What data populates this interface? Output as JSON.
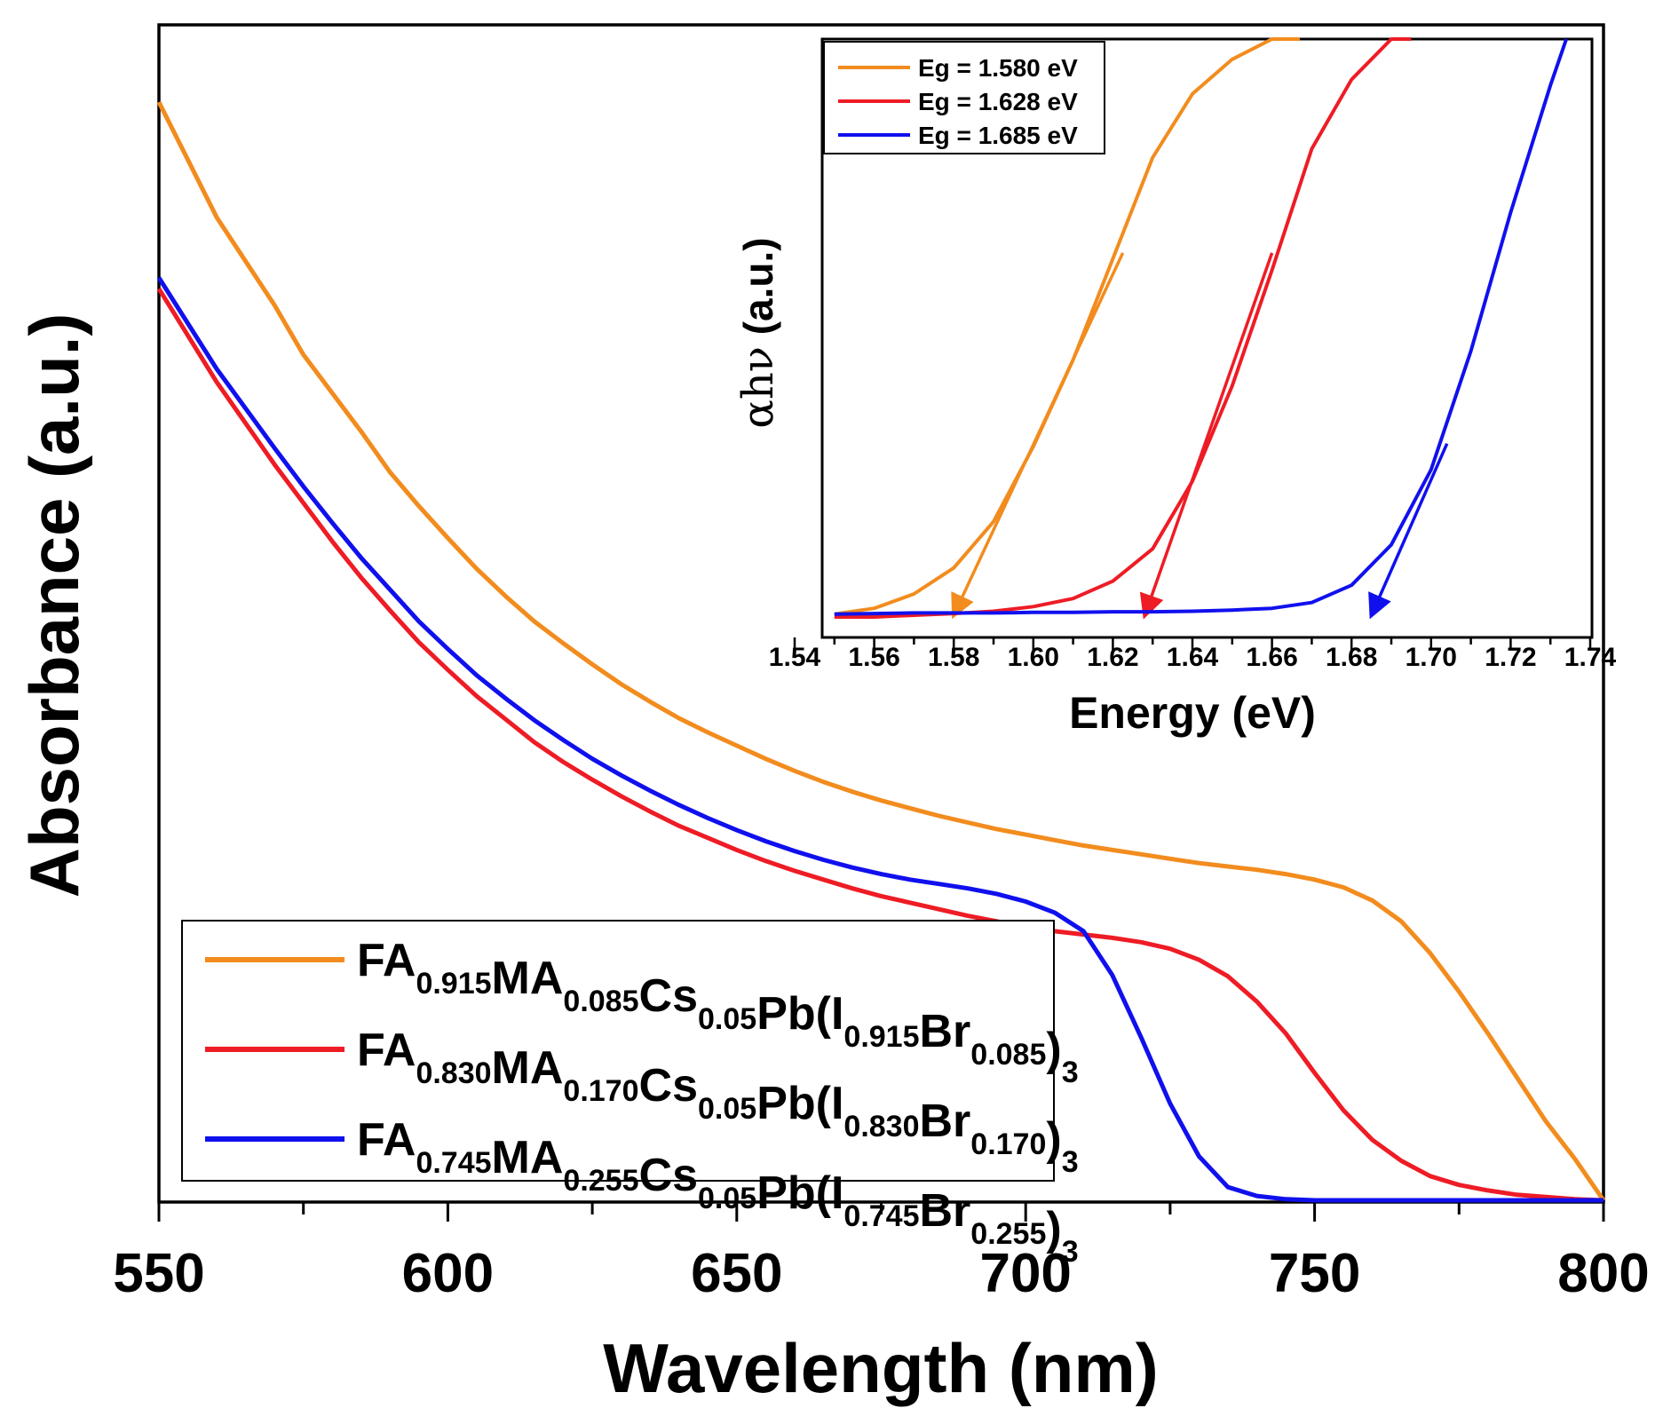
{
  "colors": {
    "orange": "#F28C1E",
    "red": "#EE1C25",
    "blue": "#1010EE",
    "axis": "#000000"
  },
  "chart_data": [
    {
      "type": "line",
      "title": "",
      "xlabel": "Wavelength (nm)",
      "ylabel": "Absorbance (a.u.)",
      "xlim": [
        550,
        800
      ],
      "ylim": [
        0,
        1.0
      ],
      "x_ticks": [
        "550",
        "600",
        "650",
        "700",
        "750",
        "800"
      ],
      "legend_position": "bottom-left",
      "series": [
        {
          "name": "FA0.915MA0.085Cs0.05Pb(I0.915Br0.085)3",
          "color": "#F28C1E",
          "legend_parts": [
            [
              "FA",
              "0.915"
            ],
            [
              "MA",
              "0.085"
            ],
            [
              "Cs",
              "0.05"
            ],
            [
              "Pb(I",
              "0.915"
            ],
            [
              "Br",
              "0.085"
            ],
            [
              ")",
              "3"
            ]
          ],
          "x": [
            550,
            560,
            570,
            575,
            580,
            585,
            590,
            595,
            600,
            605,
            610,
            615,
            620,
            625,
            630,
            635,
            640,
            645,
            650,
            655,
            660,
            665,
            670,
            675,
            680,
            685,
            690,
            695,
            700,
            705,
            710,
            715,
            720,
            725,
            730,
            735,
            740,
            745,
            750,
            755,
            760,
            765,
            770,
            775,
            780,
            785,
            790,
            795,
            800
          ],
          "y": [
            1.0,
            0.895,
            0.815,
            0.77,
            0.735,
            0.7,
            0.663,
            0.632,
            0.603,
            0.575,
            0.55,
            0.527,
            0.507,
            0.488,
            0.47,
            0.454,
            0.439,
            0.426,
            0.414,
            0.402,
            0.391,
            0.381,
            0.372,
            0.364,
            0.357,
            0.35,
            0.344,
            0.338,
            0.333,
            0.328,
            0.323,
            0.319,
            0.315,
            0.311,
            0.307,
            0.304,
            0.301,
            0.297,
            0.292,
            0.285,
            0.273,
            0.254,
            0.225,
            0.19,
            0.152,
            0.112,
            0.072,
            0.038,
            0.0
          ]
        },
        {
          "name": "FA0.830MA0.170Cs0.05Pb(I0.830Br0.170)3",
          "color": "#EE1C25",
          "legend_parts": [
            [
              "FA",
              "0.830"
            ],
            [
              "MA",
              "0.170"
            ],
            [
              "Cs",
              "0.05"
            ],
            [
              "Pb(I",
              "0.830"
            ],
            [
              "Br",
              "0.170"
            ],
            [
              ")",
              "3"
            ]
          ],
          "x": [
            550,
            560,
            570,
            575,
            580,
            585,
            590,
            595,
            600,
            605,
            610,
            615,
            620,
            625,
            630,
            635,
            640,
            645,
            650,
            655,
            660,
            665,
            670,
            675,
            680,
            685,
            690,
            695,
            700,
            705,
            710,
            715,
            720,
            725,
            730,
            735,
            740,
            745,
            750,
            755,
            760,
            765,
            770,
            775,
            780,
            785,
            790,
            795,
            800
          ],
          "y": [
            0.83,
            0.745,
            0.67,
            0.635,
            0.6,
            0.567,
            0.537,
            0.508,
            0.483,
            0.459,
            0.438,
            0.417,
            0.399,
            0.383,
            0.368,
            0.354,
            0.341,
            0.33,
            0.319,
            0.309,
            0.3,
            0.292,
            0.284,
            0.277,
            0.271,
            0.265,
            0.259,
            0.254,
            0.249,
            0.245,
            0.242,
            0.239,
            0.235,
            0.229,
            0.219,
            0.204,
            0.181,
            0.152,
            0.116,
            0.082,
            0.055,
            0.036,
            0.022,
            0.014,
            0.009,
            0.005,
            0.003,
            0.001,
            0.0
          ]
        },
        {
          "name": "FA0.745MA0.255Cs0.05Pb(I0.745Br0.255)3",
          "color": "#1010EE",
          "legend_parts": [
            [
              "FA",
              "0.745"
            ],
            [
              "MA",
              "0.255"
            ],
            [
              "Cs",
              "0.05"
            ],
            [
              "Pb(I",
              "0.745"
            ],
            [
              "Br",
              "0.255"
            ],
            [
              ")",
              "3"
            ]
          ],
          "x": [
            550,
            560,
            570,
            575,
            580,
            585,
            590,
            595,
            600,
            605,
            610,
            615,
            620,
            625,
            630,
            635,
            640,
            645,
            650,
            655,
            660,
            665,
            670,
            675,
            680,
            685,
            690,
            695,
            700,
            705,
            710,
            715,
            720,
            725,
            730,
            735,
            740,
            745,
            750,
            755,
            760,
            765,
            770,
            775,
            780,
            785,
            790,
            795,
            800
          ],
          "y": [
            0.84,
            0.757,
            0.685,
            0.65,
            0.617,
            0.585,
            0.556,
            0.527,
            0.502,
            0.478,
            0.457,
            0.437,
            0.419,
            0.402,
            0.387,
            0.373,
            0.36,
            0.348,
            0.337,
            0.327,
            0.318,
            0.31,
            0.303,
            0.297,
            0.292,
            0.288,
            0.284,
            0.279,
            0.272,
            0.262,
            0.245,
            0.205,
            0.148,
            0.088,
            0.04,
            0.012,
            0.004,
            0.001,
            0.0,
            0.0,
            0.0,
            0.0,
            0.0,
            0.0,
            0.0,
            0.0,
            0.0,
            0.0,
            0.0
          ]
        }
      ]
    },
    {
      "type": "line",
      "title": "",
      "xlabel": "Energy (eV)",
      "ylabel_symbol": "αhν",
      "ylabel_unit": " (a.u.)",
      "xlim": [
        1.54,
        1.74
      ],
      "ylim": [
        0,
        1.0
      ],
      "x_ticks": [
        "1.54",
        "1.56",
        "1.58",
        "1.60",
        "1.62",
        "1.64",
        "1.66",
        "1.68",
        "1.70",
        "1.72",
        "1.74"
      ],
      "legend_position": "top-left",
      "series": [
        {
          "name": "Eg = 1.580 eV",
          "color": "#F28C1E",
          "x": [
            1.55,
            1.56,
            1.57,
            1.58,
            1.59,
            1.6,
            1.61,
            1.62,
            1.63,
            1.64,
            1.65,
            1.66,
            1.667
          ],
          "y": [
            0.005,
            0.015,
            0.04,
            0.085,
            0.165,
            0.295,
            0.445,
            0.62,
            0.795,
            0.905,
            0.965,
            1.0,
            1.01
          ],
          "fit": {
            "x": [
              1.5802,
              1.6225
            ],
            "y": [
              0.0,
              0.63
            ]
          },
          "eg": 1.58
        },
        {
          "name": "Eg = 1.628 eV",
          "color": "#EE1C25",
          "x": [
            1.55,
            1.56,
            1.57,
            1.58,
            1.59,
            1.6,
            1.61,
            1.62,
            1.63,
            1.64,
            1.65,
            1.66,
            1.67,
            1.68,
            1.69,
            1.695
          ],
          "y": [
            0.0,
            0.0,
            0.003,
            0.006,
            0.01,
            0.018,
            0.032,
            0.062,
            0.118,
            0.235,
            0.4,
            0.6,
            0.81,
            0.93,
            1.0,
            1.01
          ],
          "fit": {
            "x": [
              1.6282,
              1.66
            ],
            "y": [
              0.0,
              0.63
            ]
          },
          "eg": 1.628
        },
        {
          "name": "Eg = 1.685 eV",
          "color": "#1010EE",
          "x": [
            1.55,
            1.56,
            1.57,
            1.58,
            1.59,
            1.6,
            1.61,
            1.62,
            1.63,
            1.64,
            1.65,
            1.66,
            1.67,
            1.68,
            1.69,
            1.7,
            1.71,
            1.72,
            1.73,
            1.734
          ],
          "y": [
            0.005,
            0.006,
            0.007,
            0.007,
            0.007,
            0.008,
            0.008,
            0.009,
            0.009,
            0.01,
            0.012,
            0.015,
            0.025,
            0.055,
            0.125,
            0.255,
            0.46,
            0.7,
            0.92,
            1.01
          ],
          "fit": {
            "x": [
              1.6852,
              1.704
            ],
            "y": [
              0.0,
              0.3
            ]
          },
          "eg": 1.685
        }
      ]
    }
  ]
}
